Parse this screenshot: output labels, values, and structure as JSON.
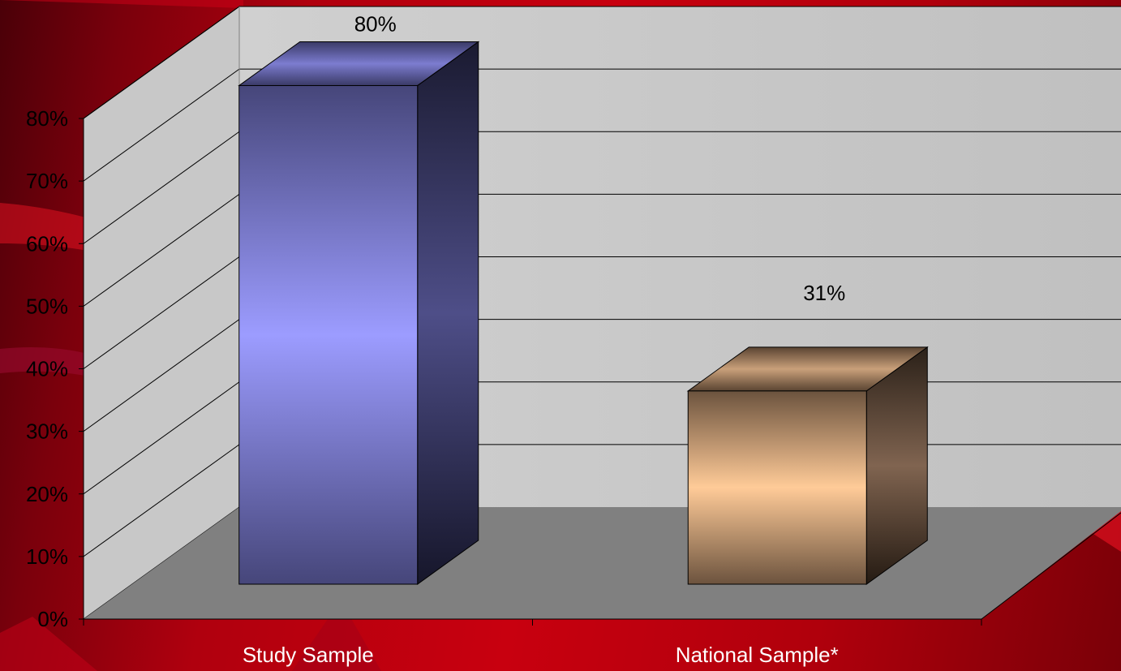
{
  "chart_data": {
    "type": "bar",
    "style": "3d-column",
    "categories": [
      "Study Sample",
      "National Sample*"
    ],
    "values": [
      80,
      31
    ],
    "data_labels": [
      "80%",
      "31%"
    ],
    "yticks": [
      "0%",
      "10%",
      "20%",
      "30%",
      "40%",
      "50%",
      "60%",
      "70%",
      "80%"
    ],
    "ylim": [
      0,
      80
    ],
    "grid": true,
    "legend": "none",
    "colors": {
      "bar_front": [
        "#4a4a7e",
        "#9b9bff",
        "#4a4a7e"
      ],
      "bar2_front": [
        "#6e5540",
        "#ffca98",
        "#6e5540"
      ],
      "wall": "#c0c0c0",
      "floor": "#808080"
    }
  }
}
